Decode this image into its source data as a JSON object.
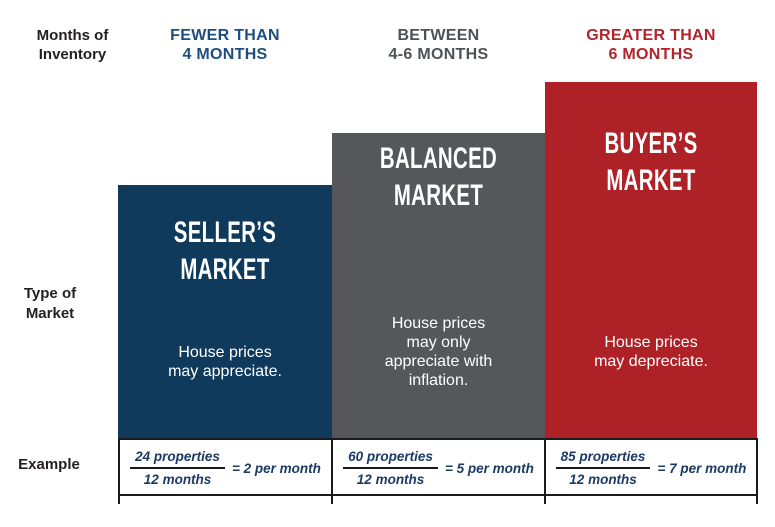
{
  "row_labels": {
    "months_of_inventory": "Months of\nInventory",
    "type_of_market": "Type of\nMarket",
    "example": "Example"
  },
  "columns": [
    {
      "inventory_label": "FEWER THAN\n4 MONTHS",
      "market_type": "SELLER’S\nMARKET",
      "price_note": "House prices\nmay appreciate.",
      "example": {
        "numerator": "24 properties",
        "denominator": "12 months",
        "rate": "= 2 per month"
      },
      "bar_color": "#0f3a5c",
      "header_text_color": "#1d4e80"
    },
    {
      "inventory_label": "BETWEEN\n4-6 MONTHS",
      "market_type": "BALANCED\nMARKET",
      "price_note": "House prices\nmay only\nappreciate with\ninflation.",
      "example": {
        "numerator": "60 properties",
        "denominator": "12 months",
        "rate": "= 5 per month"
      },
      "bar_color": "#55575b",
      "header_text_color": "#4d5257"
    },
    {
      "inventory_label": "GREATER THAN\n6 MONTHS",
      "market_type": "BUYER’S\nMARKET",
      "price_note": "House prices\nmay depreciate.",
      "example": {
        "numerator": "85 properties",
        "denominator": "12 months",
        "rate": "= 7 per month"
      },
      "bar_color": "#ad2127",
      "header_text_color": "#b2232b"
    }
  ],
  "styles": {
    "label_text_color": "#231f20",
    "example_text_color": "#1b3a64",
    "table_border_color": "#1c1b1b",
    "bar_text_color": "#ffffff"
  }
}
